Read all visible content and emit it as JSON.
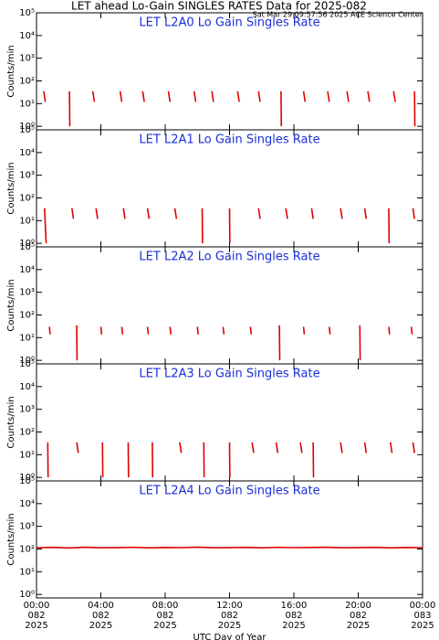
{
  "header": {
    "title": "LET ahead Lo-Gain SINGLES RATES Data for 2025-082",
    "timestamp": "Sat Mar 29 09:57:56 2025 ACE Science Center"
  },
  "chart_data": [
    {
      "type": "line",
      "title": "LET L2A0 Lo Gain Singles Rate",
      "ylabel": "Counts/min",
      "log": true,
      "color": "#e00000",
      "xlim": [
        0,
        24
      ],
      "ylim": [
        0.7,
        100000
      ],
      "yticks": [
        {
          "value": 1,
          "label": "10⁰"
        },
        {
          "value": 10,
          "label": "10¹"
        },
        {
          "value": 100,
          "label": "10²"
        },
        {
          "value": 1000,
          "label": "10³"
        },
        {
          "value": 10000,
          "label": "10⁴"
        },
        {
          "value": 100000,
          "label": "10⁵"
        }
      ],
      "xticks": [
        0,
        4,
        8,
        12,
        16,
        20,
        24
      ],
      "x": [
        0.45,
        0.55,
        0.55,
        2.05,
        2.07,
        2.07,
        3.5,
        3.6,
        3.6,
        5.2,
        5.3,
        5.3,
        6.6,
        6.7,
        6.7,
        8.2,
        8.3,
        8.3,
        9.8,
        9.9,
        9.9,
        10.9,
        11.0,
        11.0,
        12.5,
        12.6,
        12.6,
        13.8,
        13.9,
        13.9,
        15.2,
        15.22,
        15.22,
        16.6,
        16.7,
        16.7,
        18.1,
        18.2,
        18.2,
        19.3,
        19.4,
        19.4,
        20.6,
        20.7,
        20.7,
        22.2,
        22.3,
        22.3,
        23.5,
        23.52
      ],
      "values": [
        35,
        12,
        null,
        35,
        1,
        null,
        35,
        12,
        null,
        35,
        12,
        null,
        35,
        12,
        null,
        35,
        12,
        null,
        35,
        12,
        null,
        35,
        12,
        null,
        35,
        12,
        null,
        35,
        12,
        null,
        35,
        1,
        null,
        35,
        12,
        null,
        35,
        12,
        null,
        35,
        12,
        null,
        35,
        12,
        null,
        35,
        12,
        null,
        35,
        1
      ]
    },
    {
      "type": "line",
      "title": "LET L2A1 Lo Gain Singles Rate",
      "ylabel": "Counts/min",
      "log": true,
      "color": "#e00000",
      "xlim": [
        0,
        24
      ],
      "ylim": [
        0.7,
        100000
      ],
      "yticks": [
        {
          "value": 1,
          "label": "10⁰"
        },
        {
          "value": 10,
          "label": "10¹"
        },
        {
          "value": 100,
          "label": "10²"
        },
        {
          "value": 1000,
          "label": "10³"
        },
        {
          "value": 10000,
          "label": "10⁴"
        },
        {
          "value": 100000,
          "label": "10⁵"
        }
      ],
      "xticks": [
        0,
        4,
        8,
        12,
        16,
        20,
        24
      ],
      "x": [
        0.5,
        0.6,
        0.6,
        2.2,
        2.3,
        2.3,
        3.7,
        3.8,
        3.8,
        5.4,
        5.5,
        5.5,
        6.9,
        7.0,
        7.0,
        8.6,
        8.7,
        8.7,
        10.3,
        10.32,
        10.32,
        12.0,
        12.02,
        12.02,
        13.8,
        13.9,
        13.9,
        15.5,
        15.6,
        15.6,
        17.1,
        17.2,
        17.2,
        18.9,
        19.0,
        19.0,
        20.4,
        20.5,
        20.5,
        21.9,
        21.92,
        21.92,
        23.4,
        23.5
      ],
      "values": [
        35,
        1,
        null,
        35,
        12,
        null,
        35,
        12,
        null,
        35,
        12,
        null,
        35,
        12,
        null,
        35,
        12,
        null,
        35,
        1,
        null,
        35,
        1,
        null,
        35,
        12,
        null,
        35,
        12,
        null,
        35,
        12,
        null,
        35,
        12,
        null,
        35,
        12,
        null,
        35,
        1,
        null,
        35,
        12
      ]
    },
    {
      "type": "line",
      "title": "LET L2A2 Lo Gain Singles Rate",
      "ylabel": "Counts/min",
      "log": true,
      "color": "#e00000",
      "xlim": [
        0,
        24
      ],
      "ylim": [
        0.7,
        100000
      ],
      "yticks": [
        {
          "value": 1,
          "label": "10⁰"
        },
        {
          "value": 10,
          "label": "10¹"
        },
        {
          "value": 100,
          "label": "10²"
        },
        {
          "value": 1000,
          "label": "10³"
        },
        {
          "value": 10000,
          "label": "10⁴"
        },
        {
          "value": 100000,
          "label": "10⁵"
        }
      ],
      "xticks": [
        0,
        4,
        8,
        12,
        16,
        20,
        24
      ],
      "x": [
        0.8,
        0.85,
        0.85,
        2.5,
        2.52,
        2.52,
        4.0,
        4.05,
        4.05,
        5.3,
        5.35,
        5.35,
        6.9,
        6.95,
        6.95,
        8.3,
        8.35,
        8.35,
        10.0,
        10.05,
        10.05,
        11.6,
        11.65,
        11.65,
        13.3,
        13.35,
        13.35,
        15.1,
        15.12,
        15.12,
        16.6,
        16.65,
        16.65,
        18.2,
        18.25,
        18.25,
        20.1,
        20.12,
        20.12,
        21.9,
        21.95,
        21.95,
        23.3,
        23.35
      ],
      "values": [
        30,
        14,
        null,
        35,
        1,
        null,
        30,
        14,
        null,
        30,
        14,
        null,
        30,
        14,
        null,
        30,
        14,
        null,
        30,
        14,
        null,
        30,
        14,
        null,
        30,
        14,
        null,
        35,
        1,
        null,
        30,
        14,
        null,
        30,
        14,
        null,
        35,
        1,
        null,
        30,
        14,
        null,
        30,
        14
      ]
    },
    {
      "type": "line",
      "title": "LET L2A3 Lo Gain Singles Rate",
      "ylabel": "Counts/min",
      "log": true,
      "color": "#e00000",
      "xlim": [
        0,
        24
      ],
      "ylim": [
        0.7,
        100000
      ],
      "yticks": [
        {
          "value": 1,
          "label": "10⁰"
        },
        {
          "value": 10,
          "label": "10¹"
        },
        {
          "value": 100,
          "label": "10²"
        },
        {
          "value": 1000,
          "label": "10³"
        },
        {
          "value": 10000,
          "label": "10⁴"
        },
        {
          "value": 100000,
          "label": "10⁵"
        }
      ],
      "xticks": [
        0,
        4,
        8,
        12,
        16,
        20,
        24
      ],
      "x": [
        0.7,
        0.72,
        0.72,
        2.5,
        2.6,
        2.6,
        4.1,
        4.12,
        4.12,
        5.7,
        5.72,
        5.72,
        7.2,
        7.22,
        7.22,
        8.9,
        9.0,
        9.0,
        10.4,
        10.42,
        10.42,
        12.0,
        12.02,
        12.02,
        13.4,
        13.5,
        13.5,
        14.9,
        15.0,
        15.0,
        16.4,
        16.5,
        16.5,
        17.2,
        17.22,
        17.22,
        18.9,
        19.0,
        19.0,
        20.4,
        20.5,
        20.5,
        22.0,
        22.1,
        22.1,
        23.4,
        23.5
      ],
      "values": [
        35,
        1,
        null,
        35,
        12,
        null,
        35,
        1,
        null,
        35,
        1,
        null,
        35,
        1,
        null,
        35,
        12,
        null,
        35,
        1,
        null,
        35,
        1,
        null,
        35,
        12,
        null,
        35,
        12,
        null,
        35,
        12,
        null,
        35,
        1,
        null,
        35,
        12,
        null,
        35,
        12,
        null,
        35,
        12,
        null,
        35,
        12
      ]
    },
    {
      "type": "line",
      "title": "LET L2A4 Lo Gain Singles Rate",
      "ylabel": "Counts/min",
      "log": true,
      "color": "#e00000",
      "xlim": [
        0,
        24
      ],
      "ylim": [
        0.7,
        100000
      ],
      "yticks": [
        {
          "value": 1,
          "label": "10⁰"
        },
        {
          "value": 10,
          "label": "10¹"
        },
        {
          "value": 100,
          "label": "10²"
        },
        {
          "value": 1000,
          "label": "10³"
        },
        {
          "value": 10000,
          "label": "10⁴"
        },
        {
          "value": 100000,
          "label": "10⁵"
        }
      ],
      "xticks": [
        {
          "value": 0,
          "label": [
            "00:00",
            "082",
            "2025"
          ]
        },
        {
          "value": 4,
          "label": [
            "04:00",
            "082",
            "2025"
          ]
        },
        {
          "value": 8,
          "label": [
            "08:00",
            "082",
            "2025"
          ]
        },
        {
          "value": 12,
          "label": [
            "12:00",
            "082",
            "2025"
          ]
        },
        {
          "value": 16,
          "label": [
            "16:00",
            "082",
            "2025"
          ]
        },
        {
          "value": 20,
          "label": [
            "20:00",
            "082",
            "2025"
          ]
        },
        {
          "value": 24,
          "label": [
            "00:00",
            "083",
            "2025"
          ]
        }
      ],
      "xlabel": "UTC Day of Year",
      "x": [
        0,
        1,
        2,
        3,
        4,
        5,
        6,
        7,
        8,
        9,
        10,
        11,
        12,
        13,
        14,
        15,
        16,
        17,
        18,
        19,
        20,
        21,
        22,
        23,
        24
      ],
      "values": [
        115,
        118,
        112,
        120,
        114,
        116,
        119,
        113,
        117,
        115,
        121,
        114,
        116,
        118,
        113,
        119,
        115,
        117,
        120,
        114,
        116,
        118,
        113,
        117,
        115
      ]
    }
  ]
}
